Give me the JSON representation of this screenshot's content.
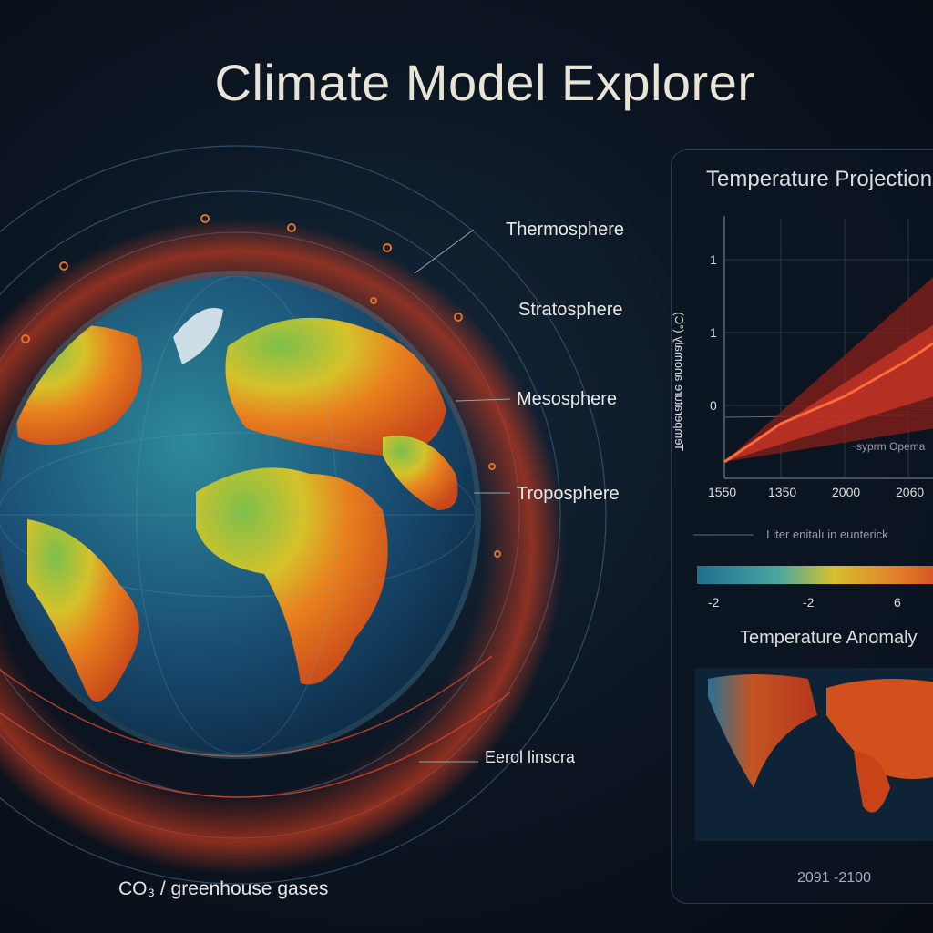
{
  "header": {
    "title": "Climate Model Explorer"
  },
  "globe": {
    "layers": [
      "Thermosphere",
      "Stratosphere",
      "Mesosphere",
      "Troposphere",
      "Eerol linscra"
    ],
    "caption": "CO₃ / greenhouse gases"
  },
  "projection_panel": {
    "title": "Temperature Projections",
    "y_label": "Temperature anomaly (°C)",
    "y_tick_labels": [
      "1",
      "1",
      "0"
    ],
    "x_tick_labels": [
      "1550",
      "1350",
      "2000",
      "2060"
    ],
    "annotation": "~syprm Opema",
    "note": "I iter enitalı in eunterick",
    "colorbar_labels": [
      "-2",
      "-2",
      "6"
    ]
  },
  "map_panel": {
    "title": "Temperature Anomaly",
    "period": "2091 -2100"
  }
}
